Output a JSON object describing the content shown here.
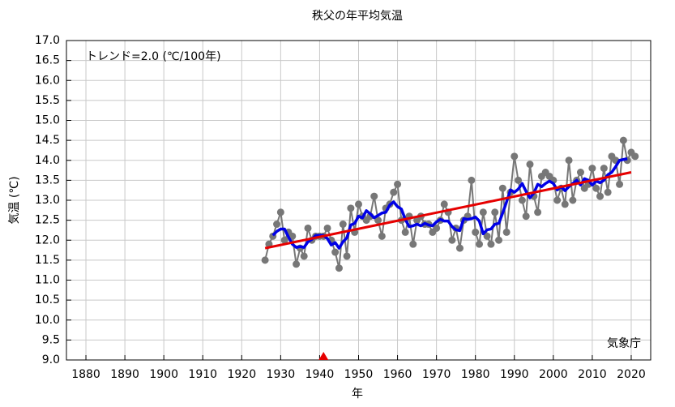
{
  "chart_data": {
    "type": "line",
    "title": "秩父の年平均気温",
    "xlabel": "年",
    "ylabel": "気温 (℃)",
    "annotations": [
      "トレンド=2.0 (℃/100年)",
      "気象庁"
    ],
    "x": [
      1926,
      1927,
      1928,
      1929,
      1930,
      1931,
      1932,
      1933,
      1934,
      1935,
      1936,
      1937,
      1938,
      1939,
      1940,
      1941,
      1942,
      1943,
      1944,
      1945,
      1946,
      1947,
      1948,
      1949,
      1950,
      1951,
      1952,
      1953,
      1954,
      1955,
      1956,
      1957,
      1958,
      1959,
      1960,
      1961,
      1962,
      1963,
      1964,
      1965,
      1966,
      1967,
      1968,
      1969,
      1970,
      1971,
      1972,
      1973,
      1974,
      1975,
      1976,
      1977,
      1978,
      1979,
      1980,
      1981,
      1982,
      1983,
      1984,
      1985,
      1986,
      1987,
      1988,
      1989,
      1990,
      1991,
      1992,
      1993,
      1994,
      1995,
      1996,
      1997,
      1998,
      1999,
      2000,
      2001,
      2002,
      2003,
      2004,
      2005,
      2006,
      2007,
      2008,
      2009,
      2010,
      2011,
      2012,
      2013,
      2014,
      2015,
      2016,
      2017,
      2018,
      2019,
      2020,
      2021
    ],
    "series": [
      {
        "color": "#777777",
        "markers": true,
        "values": [
          11.5,
          11.9,
          12.1,
          12.4,
          12.7,
          12.0,
          12.2,
          12.1,
          11.4,
          11.8,
          11.6,
          12.3,
          12.0,
          12.1,
          12.1,
          12.1,
          12.3,
          12.0,
          11.7,
          11.3,
          12.4,
          11.6,
          12.8,
          12.2,
          12.9,
          12.6,
          12.5,
          12.6,
          13.1,
          12.5,
          12.1,
          12.8,
          12.9,
          13.2,
          13.4,
          12.5,
          12.2,
          12.6,
          11.9,
          12.5,
          12.6,
          12.4,
          12.4,
          12.2,
          12.3,
          12.5,
          12.9,
          12.7,
          12.0,
          12.3,
          11.8,
          12.5,
          12.6,
          13.5,
          12.2,
          11.9,
          12.7,
          12.1,
          11.9,
          12.7,
          12.0,
          13.3,
          12.2,
          13.2,
          14.1,
          13.5,
          13.0,
          12.6,
          13.9,
          13.1,
          12.7,
          13.6,
          13.7,
          13.6,
          13.5,
          13.0,
          13.3,
          12.9,
          14.0,
          13.0,
          13.5,
          13.7,
          13.3,
          13.4,
          13.8,
          13.3,
          13.1,
          13.8,
          13.2,
          14.1,
          14.0,
          13.4,
          14.5,
          14.0,
          14.2,
          14.1
        ]
      },
      {
        "color": "#0000e6",
        "markers": false,
        "values": [
          null,
          null,
          12.12,
          12.22,
          12.28,
          12.28,
          12.08,
          11.9,
          11.82,
          11.84,
          11.82,
          11.96,
          12.02,
          12.12,
          12.12,
          12.12,
          12.04,
          11.88,
          11.94,
          11.8,
          11.96,
          12.06,
          12.38,
          12.42,
          12.6,
          12.56,
          12.74,
          12.66,
          12.56,
          12.62,
          12.68,
          12.7,
          12.88,
          12.96,
          12.84,
          12.78,
          12.52,
          12.34,
          12.36,
          12.4,
          12.36,
          12.42,
          12.38,
          12.36,
          12.46,
          12.52,
          12.48,
          12.48,
          12.34,
          12.26,
          12.24,
          12.54,
          12.52,
          12.54,
          12.58,
          12.48,
          12.16,
          12.26,
          12.28,
          12.4,
          12.42,
          12.68,
          12.96,
          13.26,
          13.2,
          13.28,
          13.42,
          13.22,
          13.06,
          13.18,
          13.4,
          13.34,
          13.42,
          13.48,
          13.42,
          13.26,
          13.34,
          13.24,
          13.34,
          13.42,
          13.5,
          13.38,
          13.54,
          13.5,
          13.38,
          13.48,
          13.44,
          13.5,
          13.64,
          13.7,
          13.84,
          14.0,
          14.02,
          14.04,
          null,
          null
        ]
      }
    ],
    "trend": {
      "x": [
        1926,
        2020
      ],
      "values": [
        11.8,
        13.7
      ],
      "color": "#e60000"
    },
    "markers": {
      "x": [
        1941
      ],
      "color": "#e60000"
    },
    "xlim": [
      1875,
      2025
    ],
    "ylim": [
      9,
      17
    ],
    "xticks": [
      1880,
      1890,
      1900,
      1910,
      1920,
      1930,
      1940,
      1950,
      1960,
      1970,
      1980,
      1990,
      2000,
      2010,
      2020
    ],
    "yticks": [
      {
        "value": 9,
        "label": "9.0"
      },
      9.5,
      {
        "value": 10,
        "label": "10.0"
      },
      10.5,
      {
        "value": 11,
        "label": "11.0"
      },
      11.5,
      {
        "value": 12,
        "label": "12.0"
      },
      12.5,
      {
        "value": 13,
        "label": "13.0"
      },
      13.5,
      {
        "value": 14,
        "label": "14.0"
      },
      14.5,
      {
        "value": 15,
        "label": "15.0"
      },
      15.5,
      {
        "value": 16,
        "label": "16.0"
      },
      16.5,
      {
        "value": 17,
        "label": "17.0"
      }
    ],
    "grid": true
  }
}
